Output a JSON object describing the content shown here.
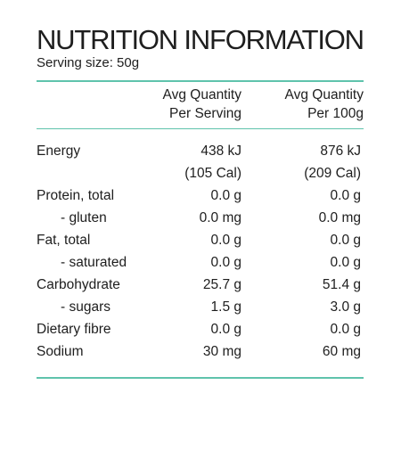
{
  "title": "NUTRITION INFORMATION",
  "serving_size": "Serving size: 50g",
  "accent_color": "#5fc3ac",
  "columns": {
    "per_serving": [
      "Avg Quantity",
      "Per Serving"
    ],
    "per_100g": [
      "Avg Quantity",
      "Per 100g"
    ]
  },
  "rows": [
    {
      "label": "Energy",
      "per_serving": "438 kJ",
      "per_100g": "876 kJ",
      "sub": false
    },
    {
      "label": "",
      "per_serving": "(105 Cal)",
      "per_100g": "(209 Cal)",
      "sub": false
    },
    {
      "label": "Protein, total",
      "per_serving": "0.0 g",
      "per_100g": "0.0 g",
      "sub": false
    },
    {
      "label": "- gluten",
      "per_serving": "0.0 mg",
      "per_100g": "0.0 mg",
      "sub": true
    },
    {
      "label": "Fat, total",
      "per_serving": "0.0 g",
      "per_100g": "0.0 g",
      "sub": false
    },
    {
      "label": "- saturated",
      "per_serving": "0.0 g",
      "per_100g": "0.0 g",
      "sub": true
    },
    {
      "label": "Carbohydrate",
      "per_serving": "25.7 g",
      "per_100g": "51.4 g",
      "sub": false
    },
    {
      "label": "- sugars",
      "per_serving": "1.5 g",
      "per_100g": "3.0 g",
      "sub": true
    },
    {
      "label": "Dietary fibre",
      "per_serving": "0.0 g",
      "per_100g": "0.0 g",
      "sub": false
    },
    {
      "label": "Sodium",
      "per_serving": "30 mg",
      "per_100g": "60 mg",
      "sub": false
    }
  ]
}
